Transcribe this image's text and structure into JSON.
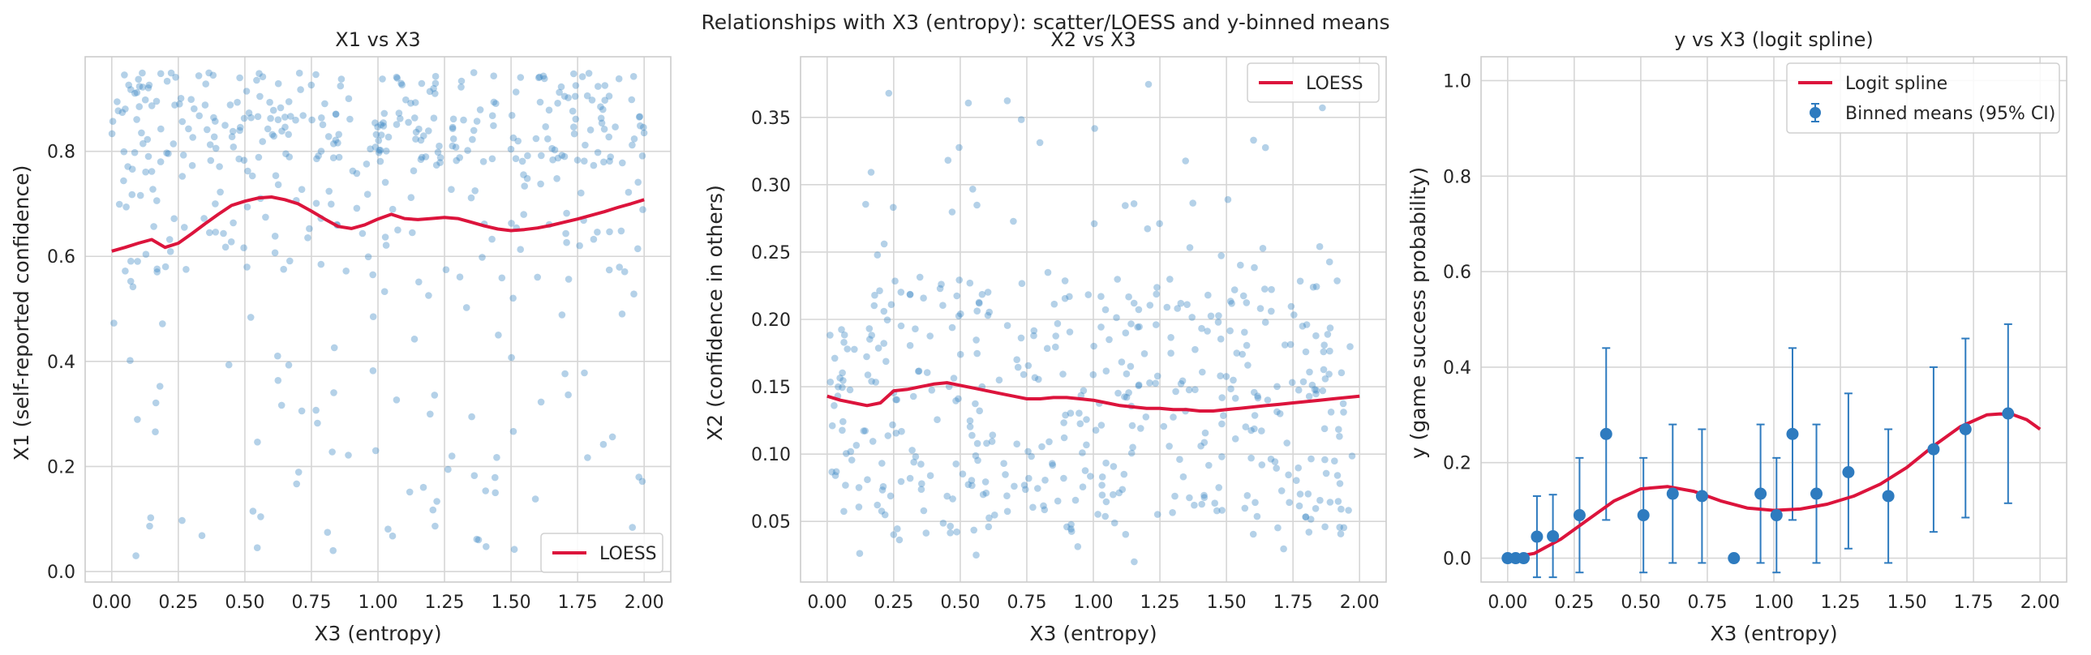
{
  "figure": {
    "suptitle": "Relationships with X3 (entropy): scatter/LOESS and y-binned means"
  },
  "colors": {
    "scatter": "#3b86c2",
    "loess": "#dc143c",
    "binned": "#2e7bbf",
    "grid": "#d6d6d6",
    "frame": "#cccccc",
    "background": "#ffffff"
  },
  "chart_data": [
    {
      "type": "scatter",
      "title": "X1 vs X3",
      "xlabel": "X3 (entropy)",
      "ylabel": "X1 (self-reported confidence)",
      "xlim": [
        -0.1,
        2.1
      ],
      "ylim": [
        -0.02,
        0.98
      ],
      "xticks": [
        0.0,
        0.25,
        0.5,
        0.75,
        1.0,
        1.25,
        1.5,
        1.75,
        2.0
      ],
      "xtick_labels": [
        "0.00",
        "0.25",
        "0.50",
        "0.75",
        "1.00",
        "1.25",
        "1.50",
        "1.75",
        "2.00"
      ],
      "yticks": [
        0.0,
        0.2,
        0.4,
        0.6,
        0.8
      ],
      "ytick_labels": [
        "0.0",
        "0.2",
        "0.4",
        "0.6",
        "0.8"
      ],
      "grid": true,
      "legend": {
        "position": "lower-right",
        "entries": [
          "LOESS"
        ]
      },
      "scatter_summary": {
        "x_range": [
          0.0,
          2.0
        ],
        "y_range": [
          0.03,
          0.95
        ],
        "dense_top_band": [
          0.78,
          0.95
        ]
      },
      "loess": {
        "name": "LOESS",
        "x": [
          0.0,
          0.05,
          0.1,
          0.15,
          0.2,
          0.25,
          0.3,
          0.35,
          0.4,
          0.45,
          0.5,
          0.55,
          0.6,
          0.65,
          0.7,
          0.75,
          0.8,
          0.85,
          0.9,
          0.95,
          1.0,
          1.05,
          1.1,
          1.15,
          1.2,
          1.25,
          1.3,
          1.35,
          1.4,
          1.45,
          1.5,
          1.55,
          1.6,
          1.65,
          1.7,
          1.75,
          1.8,
          1.85,
          1.9,
          1.95,
          2.0
        ],
        "y": [
          0.61,
          0.617,
          0.625,
          0.632,
          0.617,
          0.625,
          0.643,
          0.662,
          0.68,
          0.697,
          0.705,
          0.711,
          0.713,
          0.708,
          0.7,
          0.686,
          0.671,
          0.657,
          0.653,
          0.66,
          0.671,
          0.68,
          0.672,
          0.67,
          0.672,
          0.674,
          0.672,
          0.665,
          0.658,
          0.652,
          0.649,
          0.651,
          0.654,
          0.659,
          0.665,
          0.671,
          0.678,
          0.685,
          0.693,
          0.7,
          0.708
        ]
      }
    },
    {
      "type": "scatter",
      "title": "X2 vs X3",
      "xlabel": "X3 (entropy)",
      "ylabel": "X2 (confidence in others)",
      "xlim": [
        -0.1,
        2.1
      ],
      "ylim": [
        0.005,
        0.395
      ],
      "xticks": [
        0.0,
        0.25,
        0.5,
        0.75,
        1.0,
        1.25,
        1.5,
        1.75,
        2.0
      ],
      "xtick_labels": [
        "0.00",
        "0.25",
        "0.50",
        "0.75",
        "1.00",
        "1.25",
        "1.50",
        "1.75",
        "2.00"
      ],
      "yticks": [
        0.05,
        0.1,
        0.15,
        0.2,
        0.25,
        0.3,
        0.35
      ],
      "ytick_labels": [
        "0.05",
        "0.10",
        "0.15",
        "0.20",
        "0.25",
        "0.30",
        "0.35"
      ],
      "grid": true,
      "legend": {
        "position": "upper-right",
        "entries": [
          "LOESS"
        ]
      },
      "scatter_summary": {
        "x_range": [
          0.0,
          2.0
        ],
        "y_range": [
          0.025,
          0.38
        ],
        "dense_band": [
          0.05,
          0.23
        ]
      },
      "loess": {
        "name": "LOESS",
        "x": [
          0.0,
          0.05,
          0.1,
          0.15,
          0.2,
          0.25,
          0.3,
          0.35,
          0.4,
          0.45,
          0.5,
          0.55,
          0.6,
          0.65,
          0.7,
          0.75,
          0.8,
          0.85,
          0.9,
          0.95,
          1.0,
          1.05,
          1.1,
          1.15,
          1.2,
          1.25,
          1.3,
          1.35,
          1.4,
          1.45,
          1.5,
          1.55,
          1.6,
          1.65,
          1.7,
          1.75,
          1.8,
          1.85,
          1.9,
          1.95,
          2.0
        ],
        "y": [
          0.143,
          0.14,
          0.138,
          0.136,
          0.138,
          0.147,
          0.148,
          0.15,
          0.152,
          0.153,
          0.151,
          0.149,
          0.147,
          0.145,
          0.143,
          0.141,
          0.141,
          0.142,
          0.142,
          0.141,
          0.14,
          0.138,
          0.136,
          0.135,
          0.134,
          0.134,
          0.133,
          0.133,
          0.132,
          0.132,
          0.133,
          0.134,
          0.135,
          0.136,
          0.137,
          0.138,
          0.139,
          0.14,
          0.141,
          0.142,
          0.143
        ]
      }
    },
    {
      "type": "line",
      "title": "y vs X3 (logit spline)",
      "xlabel": "X3 (entropy)",
      "ylabel": "y (game success probability)",
      "xlim": [
        -0.1,
        2.1
      ],
      "ylim": [
        -0.05,
        1.05
      ],
      "xticks": [
        0.0,
        0.25,
        0.5,
        0.75,
        1.0,
        1.25,
        1.5,
        1.75,
        2.0
      ],
      "xtick_labels": [
        "0.00",
        "0.25",
        "0.50",
        "0.75",
        "1.00",
        "1.25",
        "1.50",
        "1.75",
        "2.00"
      ],
      "yticks": [
        0.0,
        0.2,
        0.4,
        0.6,
        0.8,
        1.0
      ],
      "ytick_labels": [
        "0.0",
        "0.2",
        "0.4",
        "0.6",
        "0.8",
        "1.0"
      ],
      "grid": true,
      "legend": {
        "position": "upper-right",
        "entries": [
          "Logit spline",
          "Binned means (95% CI)"
        ]
      },
      "spline": {
        "name": "Logit spline",
        "x": [
          0.0,
          0.1,
          0.2,
          0.3,
          0.4,
          0.5,
          0.6,
          0.7,
          0.8,
          0.9,
          1.0,
          1.1,
          1.2,
          1.3,
          1.4,
          1.5,
          1.6,
          1.7,
          1.8,
          1.85,
          1.9,
          1.95,
          2.0
        ],
        "y": [
          0.0,
          0.01,
          0.04,
          0.08,
          0.12,
          0.145,
          0.15,
          0.14,
          0.12,
          0.105,
          0.1,
          0.103,
          0.113,
          0.13,
          0.155,
          0.19,
          0.235,
          0.275,
          0.3,
          0.302,
          0.3,
          0.29,
          0.27
        ]
      },
      "binned_means": {
        "name": "Binned means (95% CI)",
        "x": [
          0.0,
          0.03,
          0.06,
          0.11,
          0.17,
          0.27,
          0.37,
          0.51,
          0.62,
          0.73,
          0.85,
          0.95,
          1.01,
          1.07,
          1.16,
          1.28,
          1.43,
          1.6,
          1.72,
          1.88
        ],
        "y": [
          0.0,
          0.0,
          0.0,
          0.045,
          0.046,
          0.09,
          0.26,
          0.09,
          0.135,
          0.13,
          0.0,
          0.135,
          0.09,
          0.26,
          0.135,
          0.18,
          0.13,
          0.228,
          0.27,
          0.303
        ],
        "ci_low": [
          0.0,
          0.0,
          0.0,
          -0.04,
          -0.04,
          -0.03,
          0.08,
          -0.03,
          -0.01,
          -0.01,
          0.0,
          -0.01,
          -0.03,
          0.08,
          -0.01,
          0.02,
          -0.01,
          0.055,
          0.085,
          0.115
        ],
        "ci_high": [
          0.0,
          0.0,
          0.0,
          0.13,
          0.133,
          0.21,
          0.44,
          0.21,
          0.28,
          0.27,
          0.0,
          0.28,
          0.21,
          0.44,
          0.28,
          0.345,
          0.27,
          0.4,
          0.46,
          0.49
        ]
      }
    }
  ]
}
